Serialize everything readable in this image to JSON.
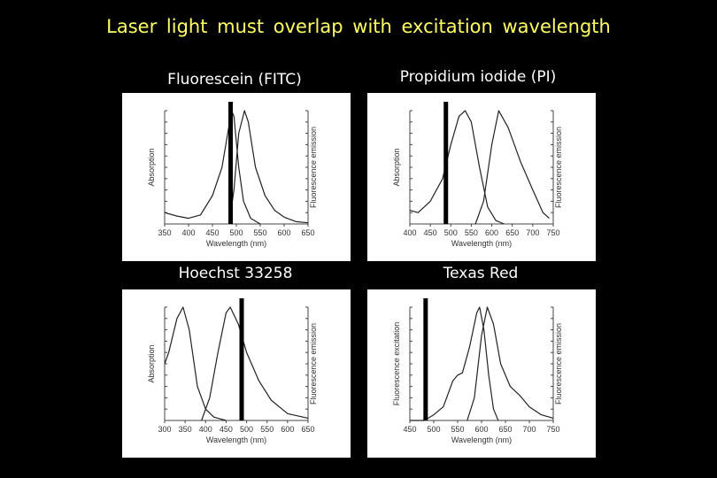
{
  "title": "Laser light must overlap with excitation wavelength",
  "chart_data": [
    {
      "type": "line",
      "title": "Fluorescein (FITC)",
      "xlabel": "Wavelength (nm)",
      "ylabel_left": "Absorption",
      "ylabel_right": "Fluorescence emission",
      "xlim": [
        350,
        650
      ],
      "xticks": [
        350,
        400,
        450,
        500,
        550,
        600,
        650
      ],
      "ylim": [
        0,
        1
      ],
      "laser_nm": 488,
      "series": [
        {
          "name": "Absorption",
          "points": [
            [
              350,
              0.1
            ],
            [
              375,
              0.07
            ],
            [
              400,
              0.05
            ],
            [
              425,
              0.08
            ],
            [
              450,
              0.25
            ],
            [
              470,
              0.5
            ],
            [
              480,
              0.75
            ],
            [
              490,
              1.0
            ],
            [
              495,
              0.95
            ],
            [
              505,
              0.5
            ],
            [
              515,
              0.2
            ],
            [
              530,
              0.05
            ],
            [
              550,
              0.0
            ]
          ]
        },
        {
          "name": "Fluorescence emission",
          "points": [
            [
              485,
              0.0
            ],
            [
              495,
              0.3
            ],
            [
              505,
              0.8
            ],
            [
              517,
              1.0
            ],
            [
              525,
              0.9
            ],
            [
              540,
              0.5
            ],
            [
              560,
              0.25
            ],
            [
              580,
              0.12
            ],
            [
              600,
              0.06
            ],
            [
              625,
              0.02
            ],
            [
              650,
              0.01
            ]
          ]
        }
      ]
    },
    {
      "type": "line",
      "title": "Propidium iodide (PI)",
      "xlabel": "Wavelength (nm)",
      "ylabel_left": "Absorption",
      "ylabel_right": "Fluorescence emission",
      "xlim": [
        400,
        750
      ],
      "xticks": [
        400,
        450,
        500,
        550,
        600,
        650,
        700,
        750
      ],
      "ylim": [
        0,
        1
      ],
      "laser_nm": 488,
      "series": [
        {
          "name": "Absorption",
          "points": [
            [
              400,
              0.12
            ],
            [
              420,
              0.1
            ],
            [
              450,
              0.2
            ],
            [
              480,
              0.4
            ],
            [
              500,
              0.7
            ],
            [
              520,
              0.95
            ],
            [
              535,
              1.0
            ],
            [
              550,
              0.9
            ],
            [
              570,
              0.5
            ],
            [
              590,
              0.15
            ],
            [
              610,
              0.03
            ],
            [
              630,
              0.0
            ]
          ]
        },
        {
          "name": "Fluorescence emission",
          "points": [
            [
              560,
              0.0
            ],
            [
              580,
              0.2
            ],
            [
              600,
              0.7
            ],
            [
              617,
              1.0
            ],
            [
              640,
              0.85
            ],
            [
              670,
              0.55
            ],
            [
              700,
              0.3
            ],
            [
              725,
              0.1
            ],
            [
              740,
              0.05
            ]
          ]
        }
      ]
    },
    {
      "type": "line",
      "title": "Hoechst 33258",
      "xlabel": "Wavelength (nm)",
      "ylabel_left": "Absorption",
      "ylabel_right": "Fluorescence emission",
      "xlim": [
        300,
        650
      ],
      "xticks": [
        300,
        350,
        400,
        450,
        500,
        550,
        600,
        650
      ],
      "ylim": [
        0,
        1
      ],
      "laser_nm": 488,
      "series": [
        {
          "name": "Absorption",
          "points": [
            [
              300,
              0.5
            ],
            [
              310,
              0.6
            ],
            [
              330,
              0.9
            ],
            [
              345,
              1.0
            ],
            [
              360,
              0.8
            ],
            [
              380,
              0.3
            ],
            [
              400,
              0.1
            ],
            [
              420,
              0.03
            ],
            [
              450,
              0.0
            ]
          ]
        },
        {
          "name": "Fluorescence emission",
          "points": [
            [
              390,
              0.0
            ],
            [
              410,
              0.2
            ],
            [
              430,
              0.6
            ],
            [
              450,
              0.95
            ],
            [
              460,
              1.0
            ],
            [
              480,
              0.85
            ],
            [
              500,
              0.6
            ],
            [
              530,
              0.35
            ],
            [
              560,
              0.18
            ],
            [
              600,
              0.06
            ],
            [
              650,
              0.02
            ]
          ]
        }
      ]
    },
    {
      "type": "line",
      "title": "Texas Red",
      "xlabel": "Wavelength (nm)",
      "ylabel_left": "Fluorescence excitation",
      "ylabel_right": "Fluorescence emission",
      "xlim": [
        450,
        750
      ],
      "xticks": [
        450,
        500,
        550,
        600,
        650,
        700,
        750
      ],
      "ylim": [
        0,
        1
      ],
      "laser_nm": 483,
      "series": [
        {
          "name": "Fluorescence excitation",
          "points": [
            [
              450,
              0.0
            ],
            [
              480,
              0.0
            ],
            [
              500,
              0.05
            ],
            [
              520,
              0.12
            ],
            [
              540,
              0.35
            ],
            [
              550,
              0.4
            ],
            [
              560,
              0.42
            ],
            [
              575,
              0.65
            ],
            [
              590,
              0.95
            ],
            [
              596,
              1.0
            ],
            [
              605,
              0.8
            ],
            [
              615,
              0.4
            ],
            [
              625,
              0.1
            ],
            [
              635,
              0.0
            ]
          ]
        },
        {
          "name": "Fluorescence emission",
          "points": [
            [
              570,
              0.0
            ],
            [
              585,
              0.2
            ],
            [
              600,
              0.75
            ],
            [
              612,
              1.0
            ],
            [
              625,
              0.85
            ],
            [
              640,
              0.5
            ],
            [
              660,
              0.3
            ],
            [
              680,
              0.22
            ],
            [
              700,
              0.12
            ],
            [
              725,
              0.05
            ],
            [
              750,
              0.02
            ]
          ]
        }
      ]
    }
  ]
}
